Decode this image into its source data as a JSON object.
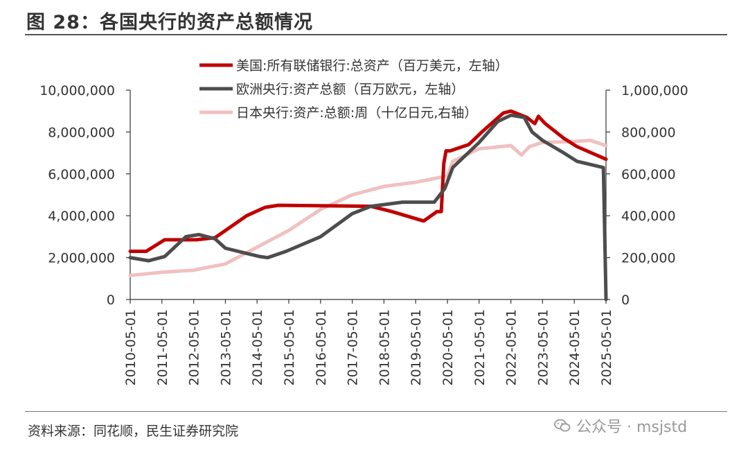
{
  "title": "图 28：各国央行的资产总额情况",
  "source": "资料来源：同花顺，民生证券研究院",
  "watermark": "公众号 · msjstd",
  "chart_data": {
    "type": "line",
    "x_ticks": [
      "2010-05-01",
      "2011-05-01",
      "2012-05-01",
      "2013-05-01",
      "2014-05-01",
      "2015-05-01",
      "2016-05-01",
      "2017-05-01",
      "2018-05-01",
      "2019-05-01",
      "2020-05-01",
      "2021-05-01",
      "2022-05-01",
      "2023-05-01",
      "2024-05-01",
      "2025-05-01"
    ],
    "y_left": {
      "min": 0,
      "max": 10000000,
      "ticks": [
        "0",
        "2,000,000",
        "4,000,000",
        "6,000,000",
        "8,000,000",
        "10,000,000"
      ]
    },
    "y_right": {
      "min": 0,
      "max": 1000000,
      "ticks": [
        "0",
        "200,000",
        "400,000",
        "600,000",
        "800,000",
        "1,000,000"
      ]
    },
    "legend_position": "top-center",
    "grid": false,
    "series": [
      {
        "name": "美国:所有联储银行:总资产（百万美元，左轴）",
        "color": "#c00000",
        "axis": "left",
        "points": [
          [
            "2010-05-01",
            2300000
          ],
          [
            "2010-11-01",
            2300000
          ],
          [
            "2011-06-01",
            2850000
          ],
          [
            "2012-06-01",
            2850000
          ],
          [
            "2013-01-01",
            2950000
          ],
          [
            "2014-01-01",
            4000000
          ],
          [
            "2014-08-01",
            4400000
          ],
          [
            "2015-01-01",
            4500000
          ],
          [
            "2017-12-01",
            4450000
          ],
          [
            "2018-08-01",
            4200000
          ],
          [
            "2019-08-01",
            3750000
          ],
          [
            "2020-01-01",
            4200000
          ],
          [
            "2020-02-20",
            4200000
          ],
          [
            "2020-03-20",
            6500000
          ],
          [
            "2020-04-15",
            7100000
          ],
          [
            "2020-06-01",
            7100000
          ],
          [
            "2021-01-01",
            7400000
          ],
          [
            "2021-06-01",
            8000000
          ],
          [
            "2022-02-01",
            8900000
          ],
          [
            "2022-05-01",
            9000000
          ],
          [
            "2022-11-01",
            8700000
          ],
          [
            "2023-02-01",
            8400000
          ],
          [
            "2023-03-15",
            8750000
          ],
          [
            "2023-06-01",
            8400000
          ],
          [
            "2024-01-01",
            7700000
          ],
          [
            "2024-06-01",
            7300000
          ],
          [
            "2025-05-01",
            6700000
          ]
        ]
      },
      {
        "name": "欧洲央行:资产总额（百万欧元，左轴）",
        "color": "#4d4d4d",
        "axis": "left",
        "points": [
          [
            "2010-05-01",
            2000000
          ],
          [
            "2010-12-01",
            1850000
          ],
          [
            "2011-06-01",
            2050000
          ],
          [
            "2012-02-01",
            3000000
          ],
          [
            "2012-07-01",
            3100000
          ],
          [
            "2013-01-01",
            2900000
          ],
          [
            "2013-05-01",
            2450000
          ],
          [
            "2014-01-01",
            2200000
          ],
          [
            "2014-06-01",
            2050000
          ],
          [
            "2014-09-01",
            2000000
          ],
          [
            "2015-04-01",
            2300000
          ],
          [
            "2016-05-01",
            3000000
          ],
          [
            "2017-05-01",
            4100000
          ],
          [
            "2017-12-01",
            4450000
          ],
          [
            "2018-12-01",
            4650000
          ],
          [
            "2019-12-01",
            4650000
          ],
          [
            "2020-04-01",
            5300000
          ],
          [
            "2020-07-01",
            6300000
          ],
          [
            "2021-05-01",
            7500000
          ],
          [
            "2021-12-01",
            8500000
          ],
          [
            "2022-05-01",
            8800000
          ],
          [
            "2022-10-01",
            8700000
          ],
          [
            "2023-01-01",
            8000000
          ],
          [
            "2023-05-01",
            7600000
          ],
          [
            "2024-01-01",
            7000000
          ],
          [
            "2024-06-01",
            6600000
          ],
          [
            "2025-04-01",
            6300000
          ],
          [
            "2025-05-01",
            0
          ]
        ]
      },
      {
        "name": "日本央行:资产:总额:周（十亿日元,右轴）",
        "color": "#f0c0c0",
        "axis": "right",
        "points": [
          [
            "2010-05-01",
            115000
          ],
          [
            "2011-05-01",
            130000
          ],
          [
            "2012-05-01",
            140000
          ],
          [
            "2013-05-01",
            170000
          ],
          [
            "2014-05-01",
            250000
          ],
          [
            "2015-05-01",
            330000
          ],
          [
            "2016-05-01",
            430000
          ],
          [
            "2017-05-01",
            500000
          ],
          [
            "2018-05-01",
            540000
          ],
          [
            "2019-05-01",
            560000
          ],
          [
            "2020-05-01",
            590000
          ],
          [
            "2020-07-01",
            660000
          ],
          [
            "2021-05-01",
            720000
          ],
          [
            "2022-05-01",
            735000
          ],
          [
            "2022-09-01",
            690000
          ],
          [
            "2022-12-01",
            730000
          ],
          [
            "2023-05-01",
            750000
          ],
          [
            "2024-05-01",
            755000
          ],
          [
            "2024-11-01",
            760000
          ],
          [
            "2025-05-01",
            735000
          ]
        ]
      }
    ]
  }
}
